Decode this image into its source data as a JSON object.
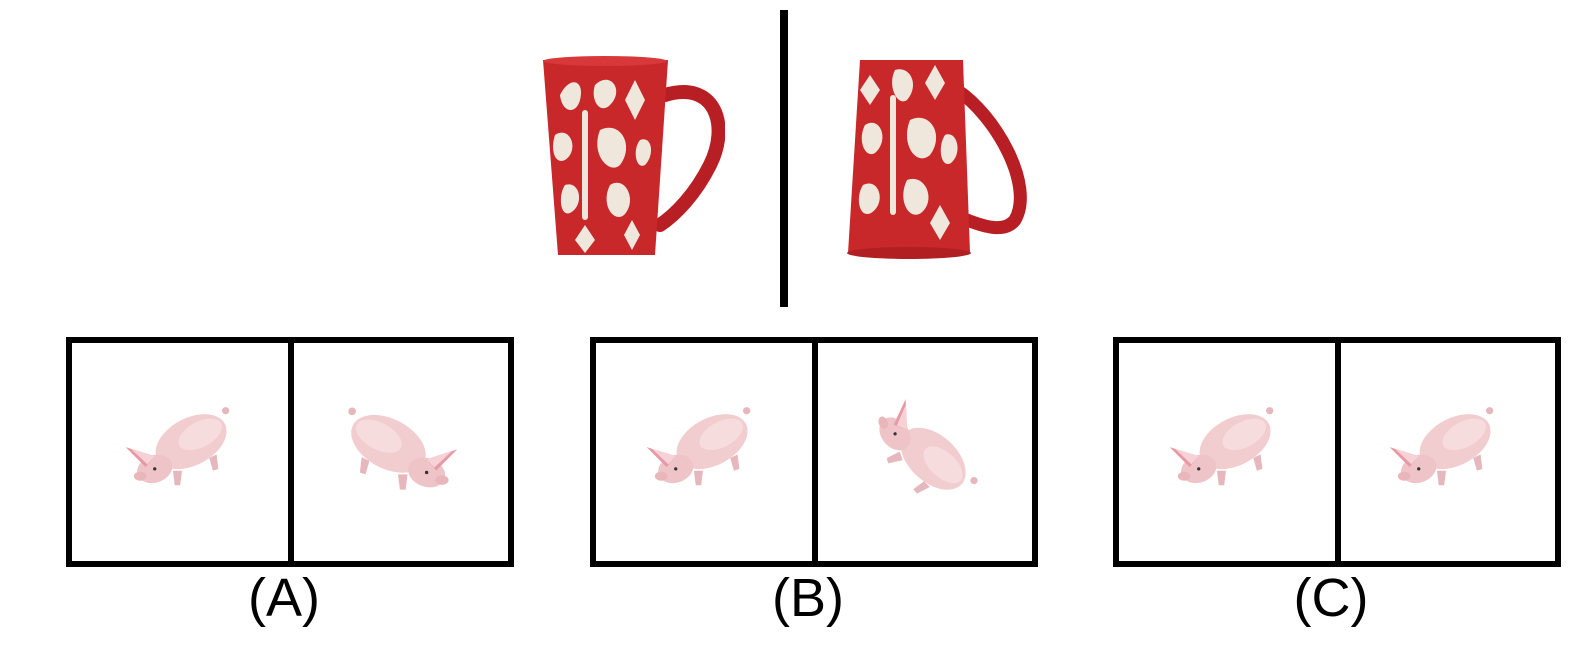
{
  "reference": {
    "left_object": "mug-icon",
    "right_object": "mug-icon",
    "colors": {
      "mug_red": "#c8282a",
      "mug_pattern": "#efe6dc"
    }
  },
  "options": [
    {
      "label": "(A)",
      "left_object": "pig-icon",
      "right_object": "pig-icon"
    },
    {
      "label": "(B)",
      "left_object": "pig-icon",
      "right_object": "pig-icon"
    },
    {
      "label": "(C)",
      "left_object": "pig-icon",
      "right_object": "pig-icon"
    }
  ],
  "colors": {
    "pig_body": "#f2cdd0",
    "pig_shade": "#dfaab0",
    "pig_ear": "#e79aa5",
    "frame": "#000000"
  }
}
